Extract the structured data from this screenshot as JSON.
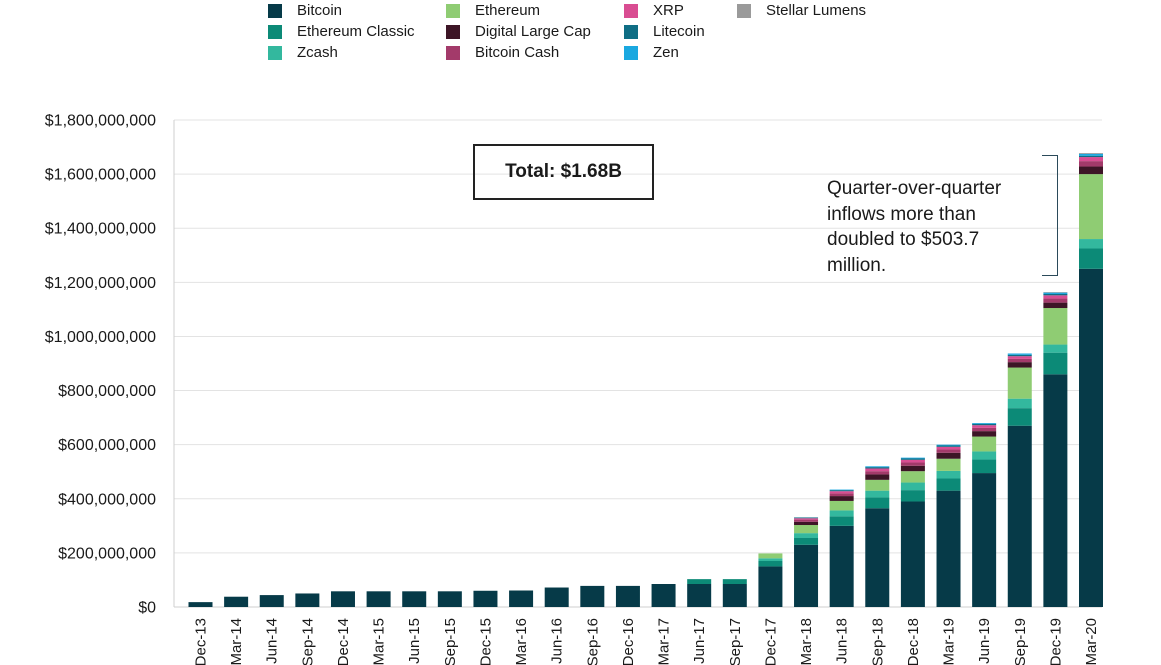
{
  "chart_data": {
    "type": "bar",
    "stacked": true,
    "categories": [
      "Dec-13",
      "Mar-14",
      "Jun-14",
      "Sep-14",
      "Dec-14",
      "Mar-15",
      "Jun-15",
      "Sep-15",
      "Dec-15",
      "Mar-16",
      "Jun-16",
      "Sep-16",
      "Dec-16",
      "Mar-17",
      "Jun-17",
      "Sep-17",
      "Dec-17",
      "Mar-18",
      "Jun-18",
      "Sep-18",
      "Dec-18",
      "Mar-19",
      "Jun-19",
      "Sep-19",
      "Dec-19",
      "Mar-20"
    ],
    "series": [
      {
        "name": "Bitcoin",
        "color": "#063a48",
        "values": [
          18000000,
          38000000,
          44000000,
          50000000,
          58000000,
          58000000,
          58000000,
          58000000,
          60000000,
          61000000,
          72000000,
          78000000,
          78000000,
          85000000,
          85000000,
          85000000,
          150000000,
          230000000,
          300000000,
          365000000,
          390000000,
          430000000,
          495000000,
          670000000,
          860000000,
          1250000000
        ]
      },
      {
        "name": "Ethereum Classic",
        "color": "#0c8a77",
        "values": [
          0,
          0,
          0,
          0,
          0,
          0,
          0,
          0,
          0,
          0,
          0,
          0,
          0,
          0,
          18000000,
          18000000,
          20000000,
          25000000,
          35000000,
          40000000,
          42000000,
          45000000,
          50000000,
          65000000,
          80000000,
          75000000
        ]
      },
      {
        "name": "Zcash",
        "color": "#33b89e",
        "values": [
          0,
          0,
          0,
          0,
          0,
          0,
          0,
          0,
          0,
          0,
          0,
          0,
          0,
          0,
          0,
          0,
          10000000,
          18000000,
          22000000,
          25000000,
          28000000,
          28000000,
          30000000,
          35000000,
          30000000,
          35000000
        ]
      },
      {
        "name": "Ethereum",
        "color": "#8fcc73",
        "values": [
          0,
          0,
          0,
          0,
          0,
          0,
          0,
          0,
          0,
          0,
          0,
          0,
          0,
          0,
          0,
          0,
          18000000,
          30000000,
          35000000,
          40000000,
          42000000,
          45000000,
          55000000,
          115000000,
          135000000,
          240000000
        ]
      },
      {
        "name": "Digital Large Cap",
        "color": "#3d1526",
        "values": [
          0,
          0,
          0,
          0,
          0,
          0,
          0,
          0,
          0,
          0,
          0,
          0,
          0,
          0,
          0,
          0,
          0,
          12000000,
          18000000,
          20000000,
          20000000,
          22000000,
          20000000,
          20000000,
          20000000,
          28000000
        ]
      },
      {
        "name": "Bitcoin Cash",
        "color": "#a33a6a",
        "values": [
          0,
          0,
          0,
          0,
          0,
          0,
          0,
          0,
          0,
          0,
          0,
          0,
          0,
          0,
          0,
          0,
          0,
          8000000,
          10000000,
          12000000,
          12000000,
          12000000,
          12000000,
          12000000,
          15000000,
          20000000
        ]
      },
      {
        "name": "XRP",
        "color": "#d94d92",
        "values": [
          0,
          0,
          0,
          0,
          0,
          0,
          0,
          0,
          0,
          0,
          0,
          0,
          0,
          0,
          0,
          0,
          0,
          5000000,
          8000000,
          10000000,
          10000000,
          10000000,
          10000000,
          10000000,
          12000000,
          15000000
        ]
      },
      {
        "name": "Litecoin",
        "color": "#0f6e85",
        "values": [
          0,
          0,
          0,
          0,
          0,
          0,
          0,
          0,
          0,
          0,
          0,
          0,
          0,
          0,
          0,
          0,
          0,
          3000000,
          4000000,
          5000000,
          5000000,
          5000000,
          5000000,
          5000000,
          5000000,
          5000000
        ]
      },
      {
        "name": "Zen",
        "color": "#1aa8e0",
        "values": [
          0,
          0,
          0,
          0,
          0,
          0,
          0,
          0,
          0,
          0,
          0,
          0,
          0,
          0,
          0,
          0,
          0,
          0,
          2000000,
          3000000,
          3000000,
          3000000,
          3000000,
          5000000,
          5000000,
          7000000
        ]
      },
      {
        "name": "Stellar Lumens",
        "color": "#9a9a9a",
        "values": [
          0,
          0,
          0,
          0,
          0,
          0,
          0,
          0,
          0,
          0,
          0,
          0,
          0,
          0,
          0,
          0,
          0,
          0,
          0,
          0,
          0,
          0,
          0,
          0,
          2000000,
          3000000
        ]
      }
    ],
    "legend": [
      {
        "name": "Bitcoin",
        "color": "#063a48"
      },
      {
        "name": "Ethereum Classic",
        "color": "#0c8a77"
      },
      {
        "name": "Zcash",
        "color": "#33b89e"
      },
      {
        "name": "Ethereum",
        "color": "#8fcc73"
      },
      {
        "name": "Digital Large Cap",
        "color": "#3d1526"
      },
      {
        "name": "Bitcoin Cash",
        "color": "#a33a6a"
      },
      {
        "name": "XRP",
        "color": "#d94d92"
      },
      {
        "name": "Litecoin",
        "color": "#0f6e85"
      },
      {
        "name": "Zen",
        "color": "#1aa8e0"
      },
      {
        "name": "Stellar Lumens",
        "color": "#9a9a9a"
      }
    ],
    "y_ticks": [
      "$0",
      "$200,000,000",
      "$400,000,000",
      "$600,000,000",
      "$800,000,000",
      "$1,000,000,000",
      "$1,200,000,000",
      "$1,400,000,000",
      "$1,600,000,000",
      "$1,800,000,000"
    ],
    "ylim": [
      0,
      1800000000
    ],
    "grid": true,
    "legend_position": "top",
    "annotations": {
      "total": "Total: $1.68B",
      "note": "Quarter-over-quarter inflows more than doubled to $503.7 million."
    }
  }
}
